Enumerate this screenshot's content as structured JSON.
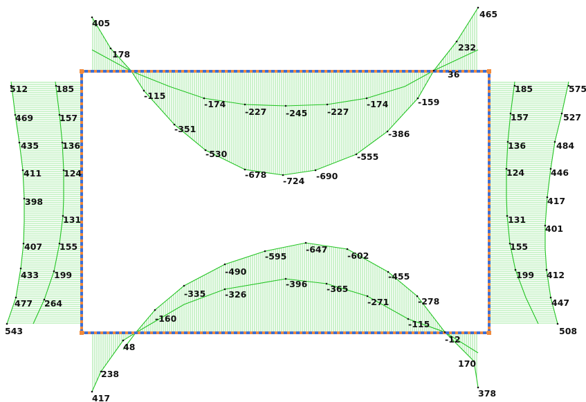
{
  "colors": {
    "frame_outer": "#f08a3c",
    "frame_inner": "#3b6fd6",
    "diagram_line": "#22c422",
    "hatch": "#7fe07f",
    "label": "#111111"
  },
  "members": {
    "top_beam": {
      "curve_a": [
        "405",
        "178",
        "-115",
        "-351",
        "-530",
        "-678",
        "-724",
        "-690",
        "-555",
        "-386",
        "-159",
        "36",
        "232",
        "465"
      ],
      "curve_b": [
        "-174",
        "-227",
        "-245",
        "-227",
        "-174"
      ]
    },
    "bottom_beam": {
      "curve_a": [
        "417",
        "238",
        "48",
        "-160",
        "-335",
        "-490",
        "-595",
        "-647",
        "-602",
        "-455",
        "-278",
        "-12",
        "170",
        "378"
      ],
      "curve_b": [
        "-326",
        "-396",
        "-365",
        "-271",
        "-115"
      ]
    },
    "left_column": {
      "outer": [
        "512",
        "469",
        "435",
        "411",
        "398",
        "407",
        "433",
        "477",
        "543"
      ],
      "inner": [
        "185",
        "157",
        "136",
        "124",
        "131",
        "155",
        "199",
        "264"
      ]
    },
    "right_column": {
      "outer": [
        "575",
        "527",
        "484",
        "446",
        "417",
        "401",
        "412",
        "447",
        "508"
      ],
      "inner": [
        "185",
        "157",
        "136",
        "124",
        "131",
        "155",
        "199"
      ]
    }
  }
}
